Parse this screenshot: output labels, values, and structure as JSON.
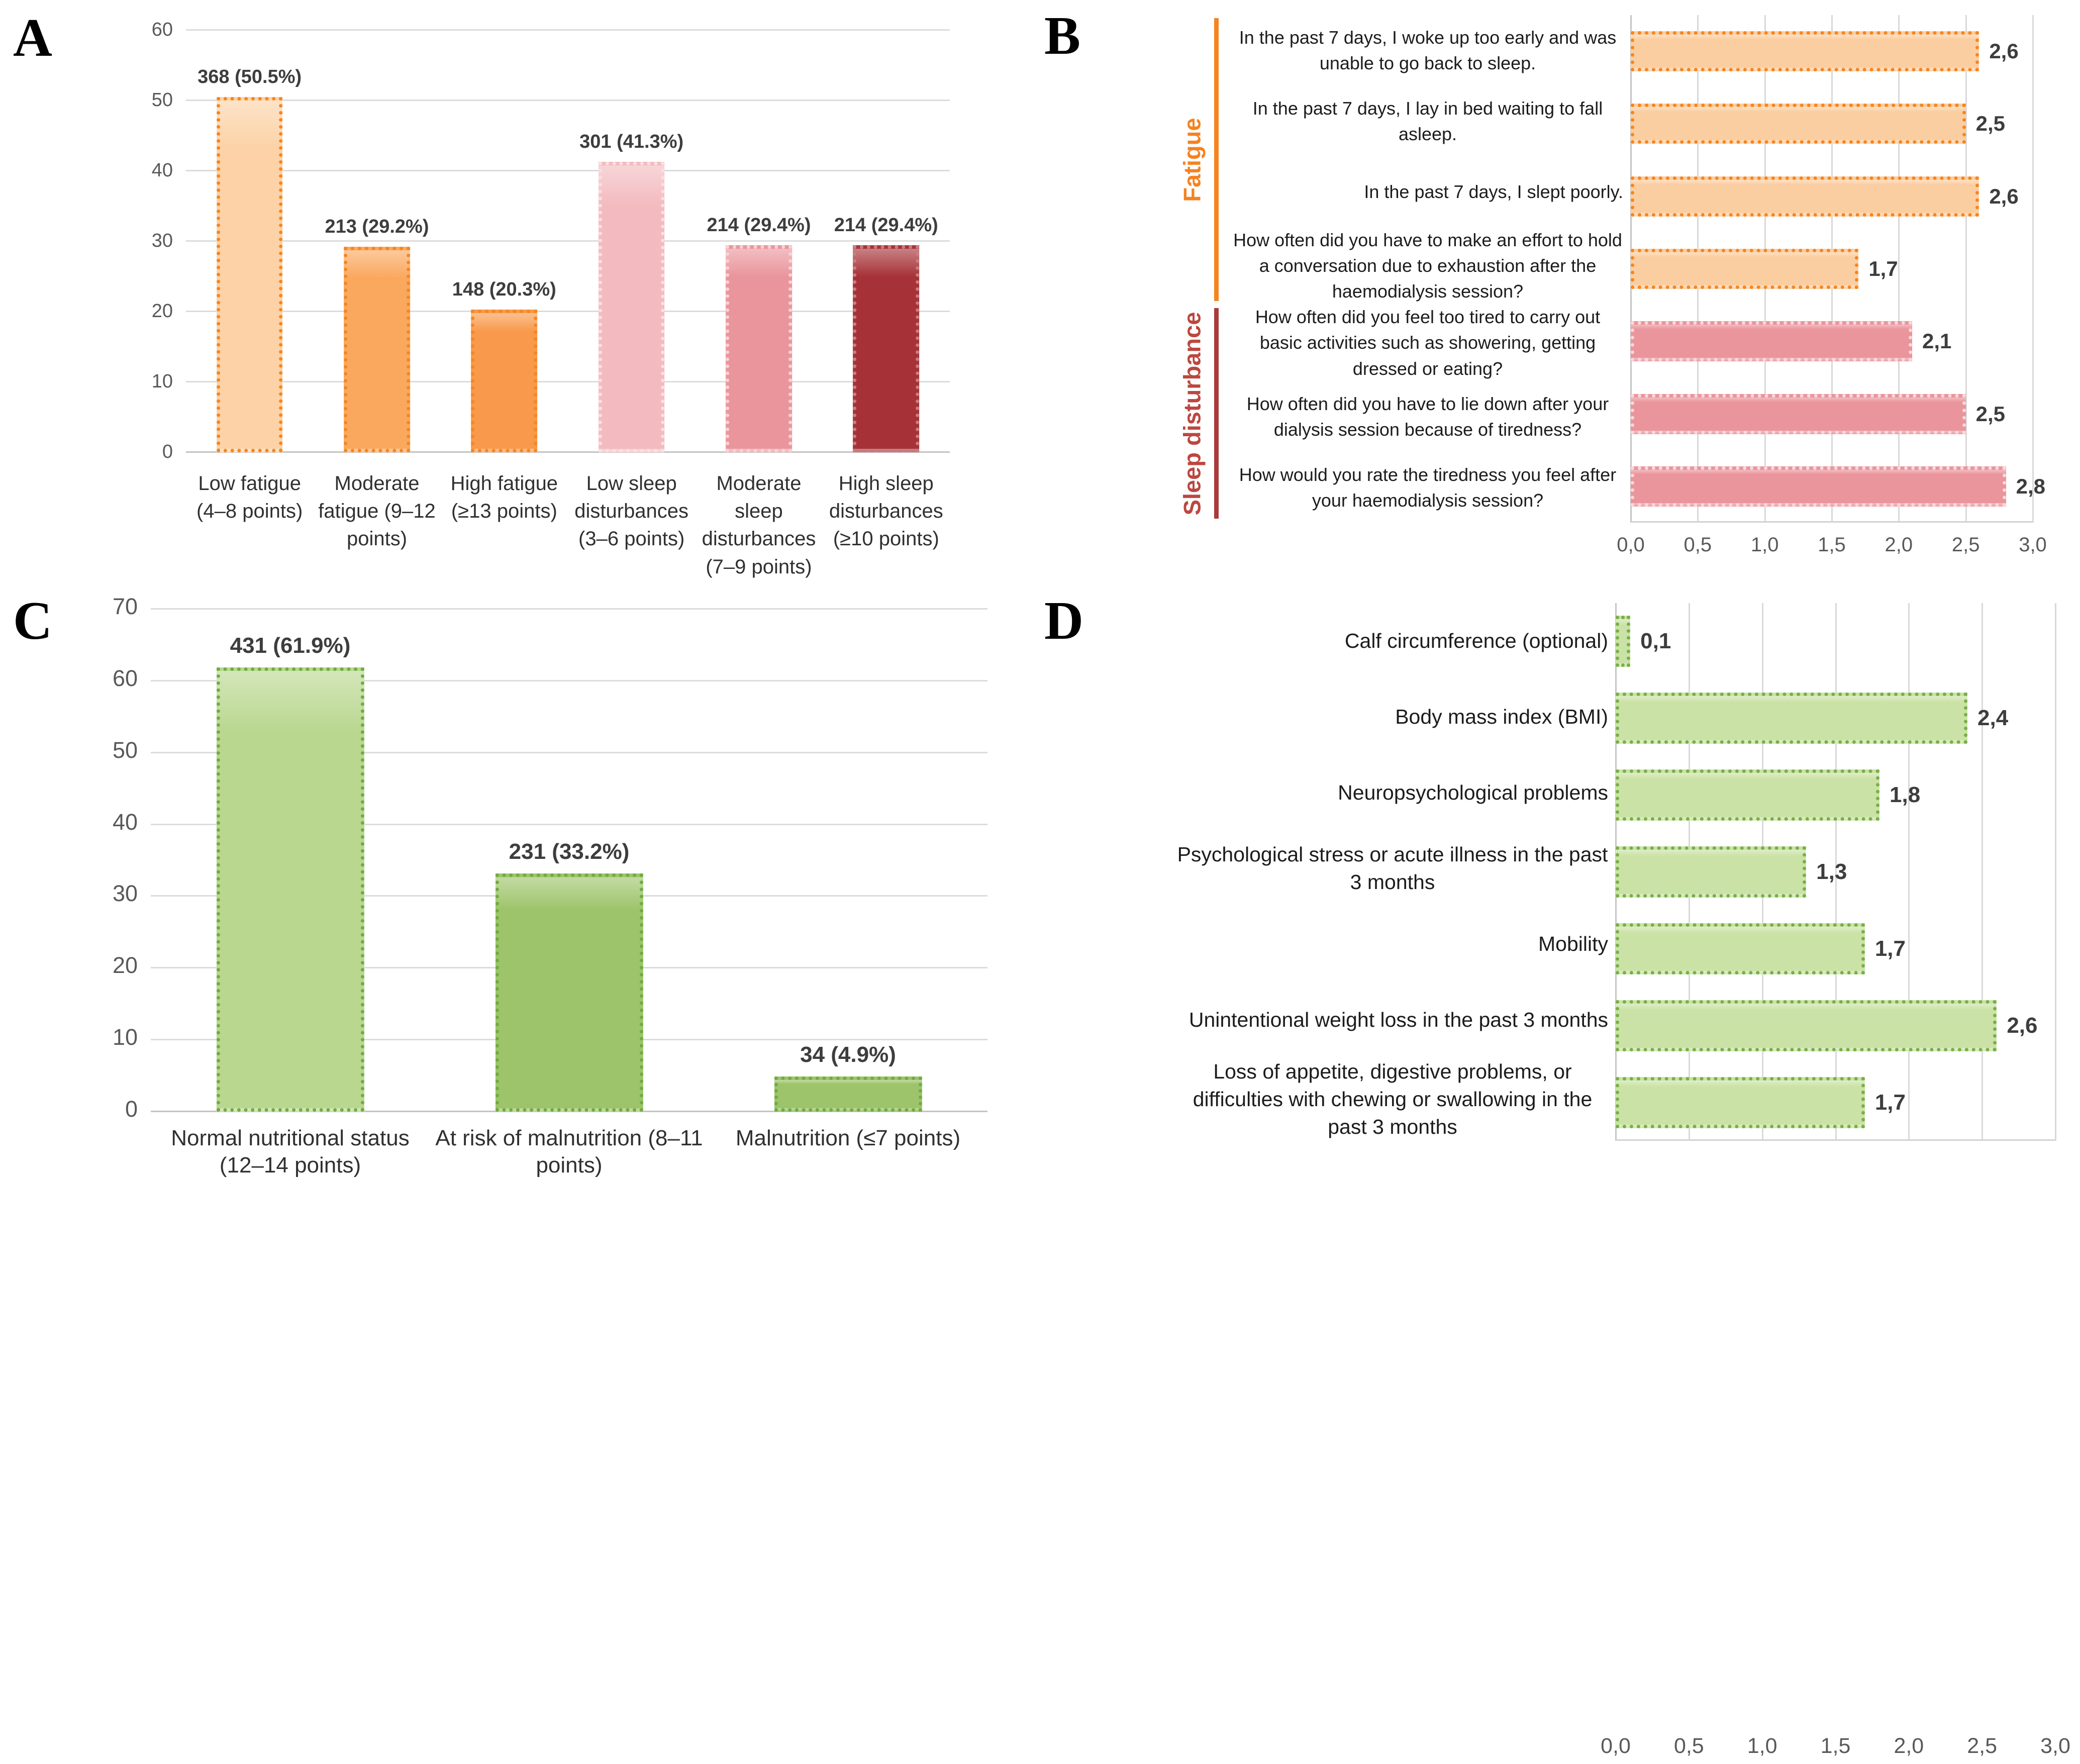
{
  "figure": {
    "background": "#ffffff",
    "palette": {
      "grid": "#dcdcdc",
      "axis": "#c3c3c3",
      "tick_text": "#595959",
      "value_text": "#3d3d3d",
      "category_text": "#303030",
      "item_label_text": "#1c1c1c",
      "orange_accent": "#F5821F",
      "dark_red_accent": "#A93B3B",
      "green_accent": "#6FAD43"
    }
  },
  "panel_letters": {
    "a": "A",
    "b": "B",
    "c": "C",
    "d": "D"
  },
  "chart_data": [
    {
      "id": "A",
      "type": "bar",
      "title": "",
      "xlabel": "",
      "ylabel": "",
      "ylim": [
        0,
        60
      ],
      "ytick_step": 10,
      "yticks": [
        "0",
        "10",
        "20",
        "30",
        "40",
        "50",
        "60"
      ],
      "grid": true,
      "categories": [
        "Low fatigue (4–8 points)",
        "Moderate fatigue (9–12 points)",
        "High fatigue (≥13 points)",
        "Low sleep disturbances (3–6 points)",
        "Moderate sleep disturbances (7–9 points)",
        "High sleep disturbances (≥10 points)"
      ],
      "values": [
        50.5,
        29.2,
        20.3,
        41.3,
        29.4,
        29.4
      ],
      "bar_labels": [
        "368 (50.5%)",
        "213 (29.2%)",
        "148 (20.3%)",
        "301 (41.3%)",
        "214 (29.4%)",
        "214 (29.4%)"
      ],
      "bar_colors": [
        {
          "fill": "#FCD2A6",
          "border": "#F6861F"
        },
        {
          "fill": "#FAA85E",
          "border": "#F6861F"
        },
        {
          "fill": "#F8994B",
          "border": "#F6861F"
        },
        {
          "fill": "#F3BBC0",
          "border": "#FADFE0"
        },
        {
          "fill": "#EA959C",
          "border": "#F8D2D4"
        },
        {
          "fill": "#A63237",
          "border": "#C97D80"
        }
      ]
    },
    {
      "id": "B",
      "type": "horizontal-bar",
      "title": "",
      "xlim": [
        0,
        3
      ],
      "xtick_step": 0.5,
      "xticks": [
        "0,0",
        "0,5",
        "1,0",
        "1,5",
        "2,0",
        "2,5",
        "3,0"
      ],
      "grid": true,
      "items": [
        {
          "label": "In the past 7 days, I woke up too early and was unable to go back to sleep.",
          "value": 2.6,
          "display": "2,6",
          "fill": "#FBCEA2",
          "border": "#F6861F"
        },
        {
          "label": "In the past 7 days, I lay in bed waiting to fall asleep.",
          "value": 2.5,
          "display": "2,5",
          "fill": "#FBCEA2",
          "border": "#F6861F"
        },
        {
          "label": "In the past 7 days, I slept poorly.",
          "value": 2.6,
          "display": "2,6",
          "fill": "#FBCEA2",
          "border": "#F6861F"
        },
        {
          "label": "How often did you have to make an effort to hold a conversation due to exhaustion after the haemodialysis session?",
          "value": 1.7,
          "display": "1,7",
          "fill": "#FBCEA2",
          "border": "#F6861F"
        },
        {
          "label": "How often did you feel too tired to carry out basic activities such as showering, getting dressed or eating?",
          "value": 2.1,
          "display": "2,1",
          "fill": "#EA949B",
          "border": "#F9D8DA"
        },
        {
          "label": "How often did you have to lie down after your dialysis session because of tiredness?",
          "value": 2.5,
          "display": "2,5",
          "fill": "#EA949B",
          "border": "#F9D8DA"
        },
        {
          "label": "How would you rate the tiredness you feel after your haemodialysis session?",
          "value": 2.8,
          "display": "2,8",
          "fill": "#EA949B",
          "border": "#F9D8DA"
        }
      ],
      "groups": [
        {
          "label": "Fatigue",
          "text_color": "#F5821F",
          "line_color": "#F68420",
          "from": 0,
          "to": 3
        },
        {
          "label": "Sleep disturbance",
          "text_color": "#BC473F",
          "line_color": "#A93B3B",
          "from": 4,
          "to": 6
        }
      ]
    },
    {
      "id": "C",
      "type": "bar",
      "title": "",
      "xlabel": "",
      "ylabel": "",
      "ylim": [
        0,
        70
      ],
      "ytick_step": 10,
      "yticks": [
        "0",
        "10",
        "20",
        "30",
        "40",
        "50",
        "60",
        "70"
      ],
      "grid": true,
      "categories": [
        "Normal nutritional status (12–14 points)",
        "At risk of malnutrition (8–11 points)",
        "Malnutrition (≤7 points)"
      ],
      "values": [
        61.9,
        33.2,
        4.9
      ],
      "bar_labels": [
        "431 (61.9%)",
        "231 (33.2%)",
        "34 (4.9%)"
      ],
      "bar_colors": [
        {
          "fill": "#B9D78F",
          "border": "#6FAD43"
        },
        {
          "fill": "#9EC46B",
          "border": "#6FAD43"
        },
        {
          "fill": "#9EC46B",
          "border": "#6FAD43"
        }
      ]
    },
    {
      "id": "D",
      "type": "horizontal-bar",
      "title": "",
      "xlim": [
        0,
        3
      ],
      "xtick_step": 0.5,
      "xticks": [
        "0,0",
        "0,5",
        "1,0",
        "1,5",
        "2,0",
        "2,5",
        "3,0"
      ],
      "grid": true,
      "items": [
        {
          "label": "Calf circumference (optional)",
          "value": 0.1,
          "display": "0,1",
          "fill": "#CBE2A6",
          "border": "#77B048"
        },
        {
          "label": "Body mass index (BMI)",
          "value": 2.4,
          "display": "2,4",
          "fill": "#CBE2A6",
          "border": "#77B048"
        },
        {
          "label": "Neuropsychological problems",
          "value": 1.8,
          "display": "1,8",
          "fill": "#CBE2A6",
          "border": "#77B048"
        },
        {
          "label": "Psychological stress or acute illness in the past 3 months",
          "value": 1.3,
          "display": "1,3",
          "fill": "#CBE2A6",
          "border": "#77B048"
        },
        {
          "label": "Mobility",
          "value": 1.7,
          "display": "1,7",
          "fill": "#CBE2A6",
          "border": "#77B048"
        },
        {
          "label": "Unintentional weight loss in the past 3 months",
          "value": 2.6,
          "display": "2,6",
          "fill": "#CBE2A6",
          "border": "#77B048"
        },
        {
          "label": "Loss of appetite, digestive problems, or difficulties with chewing or swallowing in the past 3 months",
          "value": 1.7,
          "display": "1,7",
          "fill": "#CBE2A6",
          "border": "#77B048"
        }
      ],
      "groups": []
    }
  ]
}
